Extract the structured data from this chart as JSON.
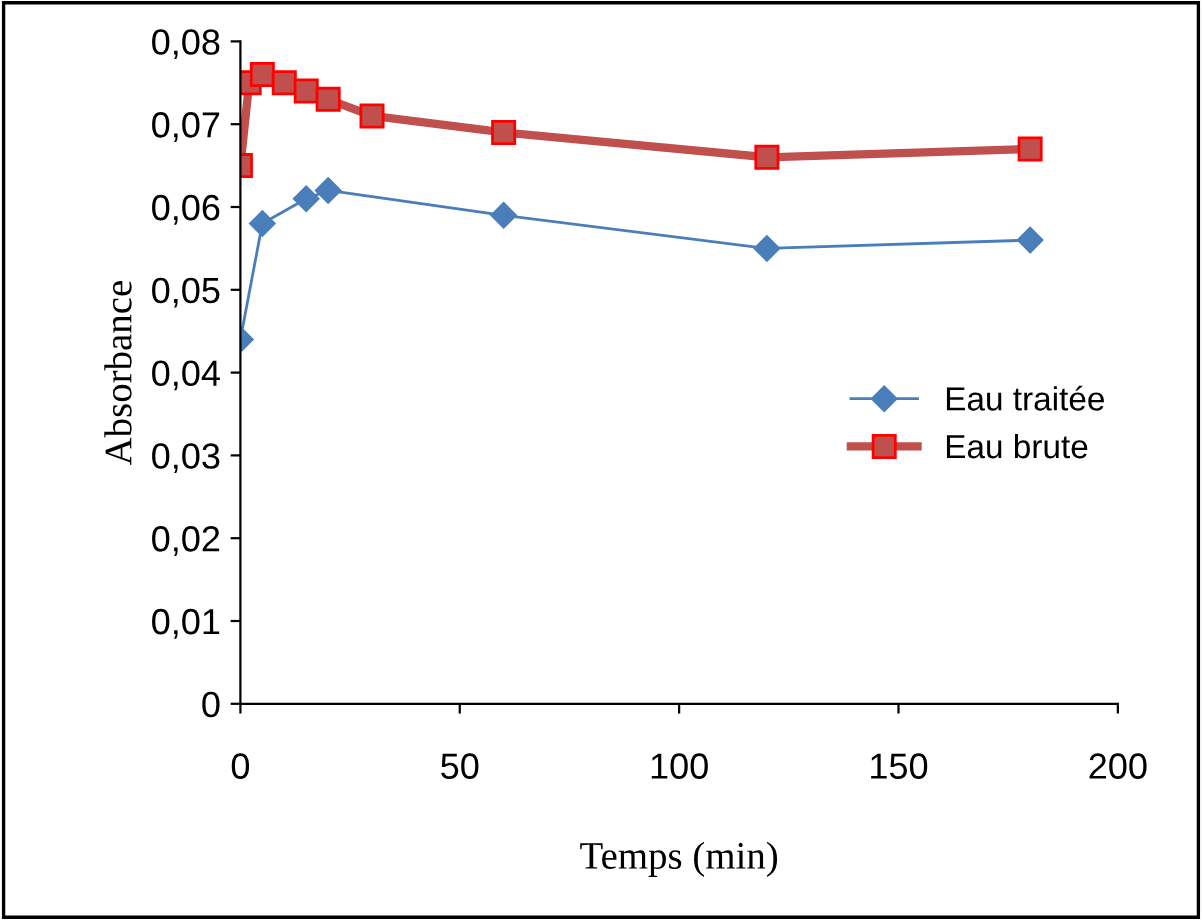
{
  "chart_data": {
    "type": "line",
    "xlabel": "Temps (min)",
    "ylabel": "Absorbance",
    "xlim": [
      0,
      200
    ],
    "xticks": [
      0,
      50,
      100,
      150,
      200
    ],
    "ylim": [
      0,
      0.08
    ],
    "yticks": [
      0,
      {
        "value": 0.01,
        "label": "0,01"
      },
      {
        "value": 0.02,
        "label": "0,02"
      },
      {
        "value": 0.03,
        "label": "0,03"
      },
      {
        "value": 0.04,
        "label": "0,04"
      },
      {
        "value": 0.05,
        "label": "0,05"
      },
      {
        "value": 0.06,
        "label": "0,06"
      },
      {
        "value": 0.07,
        "label": "0,07"
      },
      {
        "value": 0.08,
        "label": "0,08"
      }
    ],
    "grid": false,
    "legend": "right",
    "series": [
      {
        "name": "Eau traitée",
        "color": "#4a7ebb",
        "marker": "diamond",
        "x": [
          0,
          5,
          15,
          20,
          60,
          120,
          180
        ],
        "values": [
          0.044,
          0.058,
          0.061,
          0.062,
          0.059,
          0.055,
          0.056
        ]
      },
      {
        "name": "Eau brute",
        "color": "#c0504d",
        "marker": "square",
        "x": [
          0,
          2,
          5,
          10,
          15,
          20,
          30,
          60,
          120,
          180
        ],
        "values": [
          0.065,
          0.075,
          0.076,
          0.075,
          0.074,
          0.073,
          0.071,
          0.069,
          0.066,
          0.067
        ]
      }
    ]
  }
}
